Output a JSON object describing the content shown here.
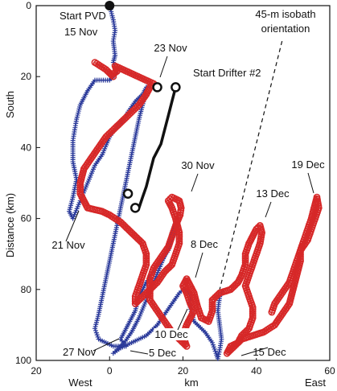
{
  "chart_data": {
    "type": "scatter",
    "xlabel": "km",
    "xlabel_left": "West",
    "xlabel_right": "East",
    "ylabel": "Distance (km)",
    "ylabel_top": "South",
    "xlim": [
      -20,
      60
    ],
    "ylim": [
      0,
      100
    ],
    "y_inverted": true,
    "xticks": [
      -20,
      0,
      20,
      40,
      60
    ],
    "xtick_labels": [
      "20",
      "0",
      "20",
      "40",
      "60"
    ],
    "yticks": [
      0,
      20,
      40,
      60,
      80,
      100
    ],
    "grid": false,
    "series": [
      {
        "color": "#2b3a9a",
        "marker": "cross",
        "points": [
          [
            0,
            0
          ],
          [
            1,
            4
          ],
          [
            1.5,
            7
          ],
          [
            1,
            10
          ],
          [
            1.5,
            14
          ],
          [
            1,
            16
          ],
          [
            2,
            19
          ],
          [
            0,
            21
          ],
          [
            -4,
            21
          ],
          [
            -6,
            24
          ],
          [
            -7,
            26
          ],
          [
            -8,
            28
          ],
          [
            -9,
            32
          ],
          [
            -10,
            38
          ],
          [
            -10,
            44
          ],
          [
            -9,
            49
          ],
          [
            -10,
            54
          ],
          [
            -11,
            58
          ],
          [
            -10,
            60
          ],
          [
            -8,
            55
          ],
          [
            -6,
            50
          ],
          [
            -4,
            45
          ],
          [
            -2,
            42
          ],
          [
            0,
            37
          ],
          [
            2,
            34
          ],
          [
            4,
            32
          ],
          [
            5,
            30
          ],
          [
            7,
            27
          ],
          [
            9,
            25
          ],
          [
            10,
            23
          ],
          [
            9.5,
            26
          ],
          [
            8,
            32
          ],
          [
            7,
            37
          ],
          [
            6,
            42
          ],
          [
            5,
            47
          ],
          [
            4,
            52
          ],
          [
            3,
            57
          ],
          [
            2,
            62
          ],
          [
            1,
            67
          ],
          [
            0,
            72
          ],
          [
            -1,
            77
          ],
          [
            -2,
            82
          ],
          [
            -3,
            87
          ],
          [
            -4,
            91
          ],
          [
            -3,
            94
          ],
          [
            -1,
            95
          ],
          [
            1,
            96
          ],
          [
            3,
            96
          ],
          [
            4.5,
            96
          ],
          [
            3,
            94
          ],
          [
            5,
            90
          ],
          [
            7,
            86
          ],
          [
            8,
            82
          ],
          [
            10,
            78
          ],
          [
            12,
            75
          ],
          [
            14,
            72
          ],
          [
            16,
            69
          ],
          [
            17,
            66
          ],
          [
            17.5,
            63
          ],
          [
            18,
            61
          ],
          [
            17,
            64
          ],
          [
            16,
            68
          ],
          [
            14,
            73
          ],
          [
            12,
            78
          ],
          [
            10,
            83
          ],
          [
            8,
            88
          ],
          [
            6,
            92
          ],
          [
            4,
            95
          ],
          [
            2,
            97
          ],
          [
            1,
            98
          ],
          [
            3,
            96.5
          ],
          [
            6,
            95
          ],
          [
            10,
            93
          ],
          [
            13,
            90
          ],
          [
            15,
            87
          ],
          [
            17,
            84
          ],
          [
            19,
            81
          ],
          [
            20,
            80
          ],
          [
            21,
            80
          ],
          [
            22,
            82
          ],
          [
            22,
            85
          ],
          [
            23,
            89
          ],
          [
            26,
            92
          ],
          [
            28,
            95
          ],
          [
            29,
            98
          ],
          [
            29.5,
            99.5
          ],
          [
            30,
            97
          ],
          [
            30.5,
            94
          ],
          [
            30,
            90
          ],
          [
            29.5,
            86
          ],
          [
            30,
            82
          ],
          [
            31,
            80
          ]
        ]
      },
      {
        "color": "#d62828",
        "marker": "circle",
        "points": [
          [
            -4,
            16
          ],
          [
            -1,
            18
          ],
          [
            1,
            20
          ],
          [
            0.5,
            19.5
          ],
          [
            2,
            18.5
          ],
          [
            1.5,
            17
          ],
          [
            12,
            22
          ],
          [
            11,
            23
          ],
          [
            10,
            25
          ],
          [
            8,
            28
          ],
          [
            5,
            31
          ],
          [
            2,
            34
          ],
          [
            -1,
            37
          ],
          [
            -3,
            40
          ],
          [
            -5,
            43
          ],
          [
            -7,
            46
          ],
          [
            -8,
            50
          ],
          [
            -8,
            53
          ],
          [
            -7,
            55
          ],
          [
            -6,
            57
          ],
          [
            -4,
            57.5
          ],
          [
            -2,
            58
          ],
          [
            0,
            59
          ],
          [
            3,
            61
          ],
          [
            5,
            63
          ],
          [
            7,
            65
          ],
          [
            9,
            67
          ],
          [
            10,
            70
          ],
          [
            10,
            73
          ],
          [
            9,
            76
          ],
          [
            8,
            79
          ],
          [
            7,
            82
          ],
          [
            7,
            84
          ],
          [
            9,
            82
          ],
          [
            11,
            80
          ],
          [
            13,
            78
          ],
          [
            15,
            75
          ],
          [
            17,
            73
          ],
          [
            18,
            70
          ],
          [
            19,
            67
          ],
          [
            19,
            64
          ],
          [
            18,
            60
          ],
          [
            17,
            57
          ],
          [
            16,
            55
          ],
          [
            17,
            54
          ],
          [
            19,
            55
          ],
          [
            19.5,
            57
          ],
          [
            19.2,
            59
          ],
          [
            18,
            62
          ],
          [
            17,
            65
          ],
          [
            16,
            68
          ],
          [
            14,
            71
          ],
          [
            12,
            74
          ],
          [
            11,
            77
          ],
          [
            11,
            80
          ],
          [
            11,
            83
          ],
          [
            13,
            86
          ],
          [
            15,
            89
          ],
          [
            17,
            92
          ],
          [
            19,
            94
          ],
          [
            21,
            96
          ],
          [
            20,
            93
          ],
          [
            21,
            90
          ],
          [
            22,
            88
          ],
          [
            23,
            86
          ],
          [
            22,
            84
          ],
          [
            21,
            81
          ],
          [
            20,
            79
          ],
          [
            20.5,
            78
          ],
          [
            21,
            77
          ],
          [
            21.5,
            78
          ],
          [
            23,
            81
          ],
          [
            24,
            85
          ],
          [
            25,
            88
          ],
          [
            27,
            89
          ],
          [
            28,
            86
          ],
          [
            28,
            83
          ],
          [
            30,
            81
          ],
          [
            33,
            80
          ],
          [
            35,
            78
          ],
          [
            36,
            76
          ],
          [
            37,
            73
          ],
          [
            37,
            70
          ],
          [
            38,
            67
          ],
          [
            39,
            65
          ],
          [
            40,
            63
          ],
          [
            41,
            62
          ],
          [
            41.5,
            64
          ],
          [
            41,
            67
          ],
          [
            40,
            70
          ],
          [
            39,
            73
          ],
          [
            38,
            76
          ],
          [
            37,
            79
          ],
          [
            38,
            82
          ],
          [
            39,
            85
          ],
          [
            39,
            88
          ],
          [
            38,
            91
          ],
          [
            36,
            93
          ],
          [
            35,
            95
          ],
          [
            33,
            96
          ],
          [
            32,
            98
          ],
          [
            34,
            96
          ],
          [
            36,
            94
          ],
          [
            39,
            93
          ],
          [
            42,
            92
          ],
          [
            45,
            90
          ],
          [
            47,
            87
          ],
          [
            49,
            84
          ],
          [
            50,
            80
          ],
          [
            51,
            76
          ],
          [
            52,
            72
          ],
          [
            52,
            69
          ],
          [
            53,
            66
          ],
          [
            54,
            63
          ],
          [
            55,
            60
          ],
          [
            56,
            56
          ],
          [
            56.5,
            54
          ],
          [
            57,
            57
          ],
          [
            56,
            60
          ],
          [
            55,
            63
          ],
          [
            54,
            66
          ],
          [
            52,
            69
          ],
          [
            51,
            72
          ],
          [
            50,
            75
          ],
          [
            49,
            78
          ],
          [
            47,
            81
          ],
          [
            45,
            84
          ],
          [
            44,
            87
          ]
        ]
      },
      {
        "color": "#111111",
        "marker": "none",
        "points": [
          [
            18,
            23
          ],
          [
            17,
            27
          ],
          [
            16,
            31
          ],
          [
            15,
            35
          ],
          [
            14,
            39
          ],
          [
            12,
            43
          ],
          [
            11,
            47
          ],
          [
            10,
            51
          ],
          [
            9,
            54
          ],
          [
            8,
            57
          ]
        ]
      }
    ],
    "start_dot": [
      0,
      0
    ],
    "open_circle_points": [
      [
        13,
        23
      ],
      [
        18,
        23
      ],
      [
        5,
        53
      ],
      [
        7,
        57
      ]
    ],
    "isobath_line": [
      [
        47,
        10
      ],
      [
        30,
        80
      ]
    ],
    "annotations": [
      {
        "text": "Start PVD"
      },
      {
        "text": "15 Nov"
      },
      {
        "text": "23 Nov"
      },
      {
        "text": "Start Drifter #2"
      },
      {
        "text": "45-m isobath"
      },
      {
        "text": "orientation"
      },
      {
        "text": "30 Nov"
      },
      {
        "text": "19 Dec"
      },
      {
        "text": "13 Dec"
      },
      {
        "text": "8 Dec"
      },
      {
        "text": "21 Nov"
      },
      {
        "text": "10 Dec"
      },
      {
        "text": "27 Nov"
      },
      {
        "text": "5 Dec"
      },
      {
        "text": "15 Dec"
      }
    ]
  }
}
